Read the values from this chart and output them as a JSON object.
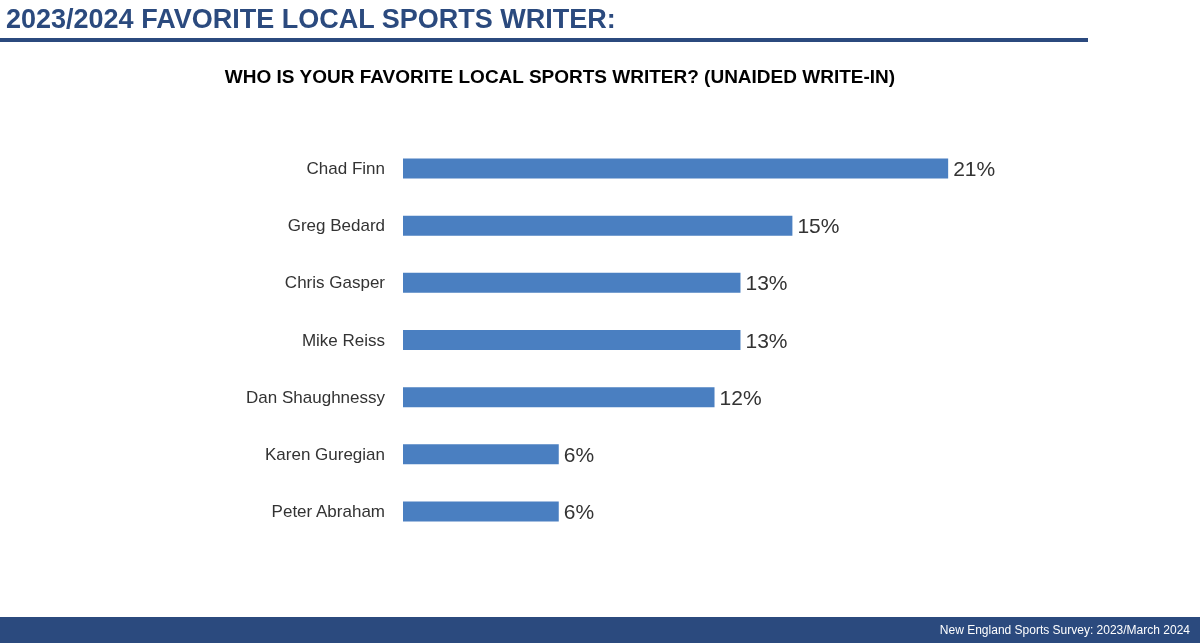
{
  "chart_data": {
    "type": "bar",
    "orientation": "horizontal",
    "title": "2023/2024 FAVORITE LOCAL SPORTS WRITER:",
    "subtitle": "WHO IS YOUR FAVORITE LOCAL SPORTS WRITER? (UNAIDED WRITE-IN)",
    "categories": [
      "Chad Finn",
      "Greg Bedard",
      "Chris Gasper",
      "Mike Reiss",
      "Dan Shaughnessy",
      "Karen Guregian",
      "Peter Abraham"
    ],
    "values": [
      21,
      15,
      13,
      13,
      12,
      6,
      6
    ],
    "color": "#4a7fc1",
    "value_labels": [
      "21%",
      "15%",
      "13%",
      "13%",
      "12%",
      "6%",
      "6%"
    ],
    "annotations": [
      "New England Sports Survey: 2023/March 2024"
    ]
  }
}
